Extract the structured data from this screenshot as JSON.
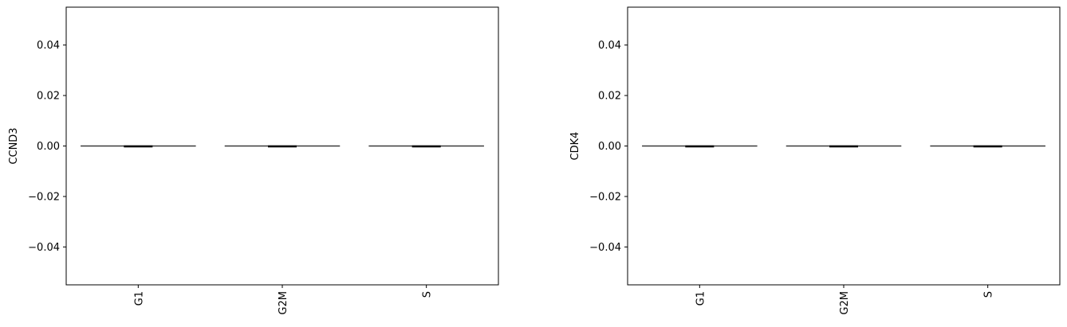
{
  "chart_data": [
    {
      "type": "violin",
      "categories": [
        "G1",
        "G2M",
        "S"
      ],
      "ylabel": "CCND3",
      "xlabel": "",
      "ylim": [
        -0.055,
        0.055
      ],
      "yticks": [
        -0.04,
        -0.02,
        0.0,
        0.02,
        0.04
      ],
      "ytick_labels": [
        "−0.04",
        "−0.02",
        "0.00",
        "0.02",
        "0.04"
      ],
      "values": [
        0.0,
        0.0,
        0.0
      ],
      "grid": false
    },
    {
      "type": "violin",
      "categories": [
        "G1",
        "G2M",
        "S"
      ],
      "ylabel": "CDK4",
      "xlabel": "",
      "ylim": [
        -0.055,
        0.055
      ],
      "yticks": [
        -0.04,
        -0.02,
        0.0,
        0.02,
        0.04
      ],
      "ytick_labels": [
        "−0.04",
        "−0.02",
        "0.00",
        "0.02",
        "0.04"
      ],
      "values": [
        0.0,
        0.0,
        0.0
      ],
      "grid": false
    }
  ]
}
